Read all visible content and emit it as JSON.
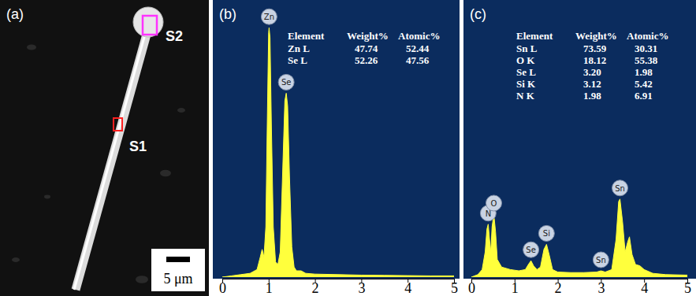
{
  "panel_a": {
    "label": "(a)",
    "annotations": [
      "S1",
      "S2"
    ],
    "scale_bar": "5 μm"
  },
  "chart_data": [
    {
      "type": "area",
      "label": "(b)",
      "color": "#ffff3c",
      "x": [
        0,
        0.2,
        0.4,
        0.6,
        0.75,
        0.82,
        0.86,
        0.9,
        0.94,
        0.97,
        1.0,
        1.01,
        1.03,
        1.06,
        1.1,
        1.15,
        1.2,
        1.25,
        1.3,
        1.35,
        1.38,
        1.41,
        1.45,
        1.5,
        1.55,
        1.6,
        1.7,
        1.8,
        2.0,
        2.5,
        3.0,
        3.5,
        4.0,
        4.5,
        5.0
      ],
      "values": [
        0,
        0.5,
        1,
        1.5,
        3,
        8,
        11,
        8,
        20,
        60,
        97,
        99,
        95,
        60,
        20,
        6,
        5,
        10,
        40,
        70,
        73,
        68,
        40,
        12,
        4,
        2.5,
        2.5,
        1.5,
        1.2,
        1,
        0.8,
        0.7,
        0.6,
        0.5,
        0.5
      ],
      "xlim": [
        0,
        5
      ],
      "xticks": [
        0,
        1,
        2,
        3,
        4,
        5
      ],
      "ylim": [
        0,
        100
      ],
      "tick_labels": "x",
      "peaks": [
        {
          "label": "Zn",
          "x": 1.01,
          "y": 99
        },
        {
          "label": "Se",
          "x": 1.38,
          "y": 73
        }
      ],
      "table": {
        "columns": [
          "Element",
          "Weight%",
          "Atomic%"
        ],
        "rows": [
          [
            "Zn L",
            "47.74",
            "52.44"
          ],
          [
            "Se L",
            "52.26",
            "47.56"
          ]
        ]
      }
    },
    {
      "type": "area",
      "label": "(c)",
      "color": "#ffff3c",
      "x": [
        0,
        0.15,
        0.25,
        0.32,
        0.36,
        0.39,
        0.42,
        0.45,
        0.48,
        0.52,
        0.56,
        0.6,
        0.7,
        0.9,
        1.1,
        1.25,
        1.32,
        1.38,
        1.44,
        1.52,
        1.6,
        1.68,
        1.74,
        1.8,
        1.88,
        2.0,
        2.3,
        2.6,
        2.9,
        3.0,
        3.1,
        3.25,
        3.35,
        3.41,
        3.44,
        3.5,
        3.56,
        3.62,
        3.66,
        3.72,
        3.8,
        3.9,
        4.0,
        4.2,
        4.5,
        5.0
      ],
      "values": [
        0,
        1,
        3,
        10,
        19,
        21,
        15,
        10,
        20,
        25,
        18,
        7,
        4,
        3,
        2.5,
        3,
        5,
        6.5,
        4.5,
        3,
        4,
        11,
        13,
        9,
        3,
        2,
        1.8,
        1.8,
        2,
        2.5,
        2,
        3,
        15,
        30,
        31,
        22,
        10,
        14,
        16,
        9,
        5,
        4.5,
        3,
        1.5,
        1,
        0.8
      ],
      "xlim": [
        0,
        5
      ],
      "xticks": [
        0,
        1,
        2,
        3,
        4,
        5
      ],
      "ylim": [
        0,
        100
      ],
      "tick_labels": "x",
      "peaks": [
        {
          "label": "N",
          "x": 0.39,
          "y": 21
        },
        {
          "label": "O",
          "x": 0.52,
          "y": 25
        },
        {
          "label": "Se",
          "x": 1.38,
          "y": 6.5
        },
        {
          "label": "Si",
          "x": 1.74,
          "y": 13
        },
        {
          "label": "Sn",
          "x": 3.0,
          "y": 2.5
        },
        {
          "label": "Sn",
          "x": 3.44,
          "y": 31
        }
      ],
      "table": {
        "columns": [
          "Element",
          "Weight%",
          "Atomic%"
        ],
        "rows": [
          [
            "Sn L",
            "73.59",
            "30.31"
          ],
          [
            "O K",
            "18.12",
            "55.38"
          ],
          [
            "Se L",
            "3.20",
            "1.98"
          ],
          [
            "Si K",
            "3.12",
            "5.42"
          ],
          [
            "N K",
            "1.98",
            "6.91"
          ]
        ]
      }
    }
  ]
}
